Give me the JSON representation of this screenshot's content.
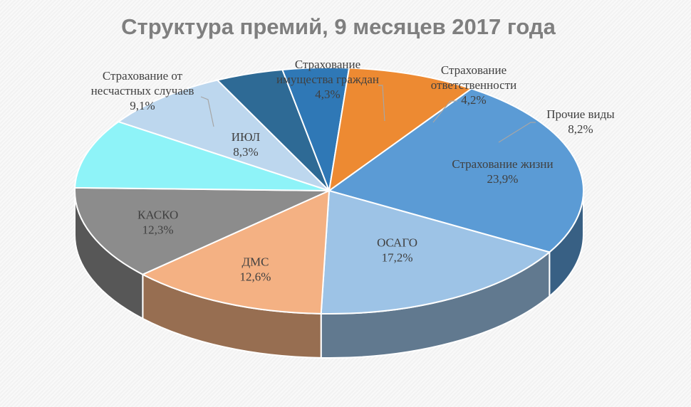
{
  "chart_data": {
    "type": "pie",
    "title": "Структура премий, 9 месяцев 2017 года",
    "slices": [
      {
        "label": "Страхование жизни",
        "value": 23.9,
        "value_label": "23,9%",
        "color": "#5b9bd5"
      },
      {
        "label": "ОСАГО",
        "value": 17.2,
        "value_label": "17,2%",
        "color": "#9dc3e6"
      },
      {
        "label": "ДМС",
        "value": 12.6,
        "value_label": "12,6%",
        "color": "#f4b183"
      },
      {
        "label": "КАСКО",
        "value": 12.3,
        "value_label": "12,3%",
        "color": "#8c8c8c"
      },
      {
        "label": "Страхование от несчастных случаев",
        "label_lines": [
          "Страхование от",
          "несчастных случаев"
        ],
        "value": 9.1,
        "value_label": "9,1%",
        "color": "#8ef3f8"
      },
      {
        "label": "ИЮЛ",
        "value": 8.3,
        "value_label": "8,3%",
        "color": "#bdd7ee"
      },
      {
        "label": "Страхование имущества граждан",
        "label_lines": [
          "Страхование",
          "имущества граждан"
        ],
        "value": 4.3,
        "value_label": "4,3%",
        "color": "#2e6a95"
      },
      {
        "label": "Страхование ответственности",
        "label_lines": [
          "Страхование",
          "ответственности"
        ],
        "value": 4.2,
        "value_label": "4,2%",
        "color": "#2f78b6"
      },
      {
        "label": "Прочие виды",
        "value": 8.2,
        "value_label": "8,2%",
        "color": "#ed8a32"
      }
    ],
    "legend": "none",
    "style": "3d-pie"
  }
}
